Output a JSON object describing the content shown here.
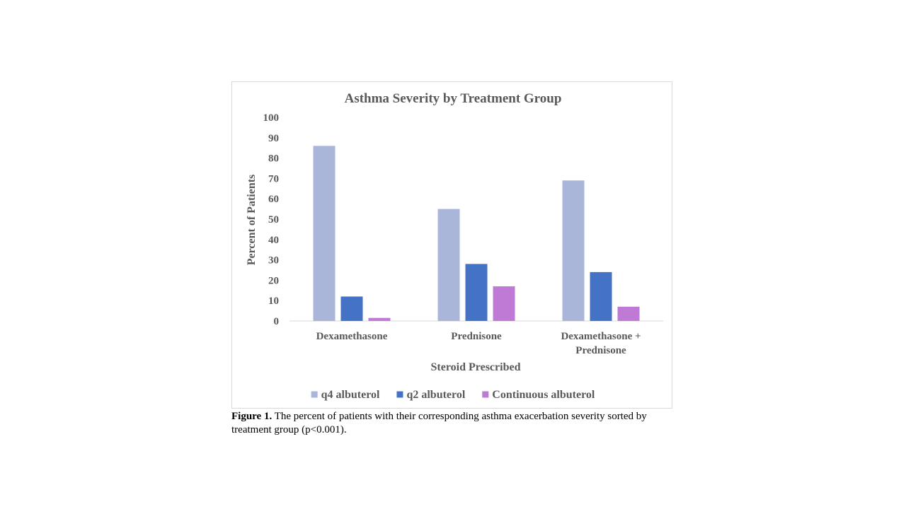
{
  "chart_data": {
    "type": "bar",
    "title": "Asthma Severity by Treatment Group",
    "xlabel": "Steroid Prescribed",
    "ylabel": "Percent of Patients",
    "ylim": [
      0,
      100
    ],
    "yticks": [
      "0",
      "10",
      "20",
      "30",
      "40",
      "50",
      "60",
      "70",
      "80",
      "90",
      "100"
    ],
    "categories": [
      [
        "Dexamethasone"
      ],
      [
        "Prednisone"
      ],
      [
        "Dexamethasone +",
        "Prednisone"
      ]
    ],
    "series": [
      {
        "name": "q4 albuterol",
        "color": "#a9b6da",
        "values": [
          86,
          55,
          69
        ]
      },
      {
        "name": "q2 albuterol",
        "color": "#4472c4",
        "values": [
          12,
          28,
          24
        ]
      },
      {
        "name": "Continuous albuterol",
        "color": "#bf7ad6",
        "values": [
          1.5,
          17,
          7
        ]
      }
    ],
    "grid": false,
    "legend_position": "bottom"
  },
  "caption": {
    "label": "Figure 1.",
    "text": " The percent of patients with their corresponding asthma exacerbation severity sorted by treatment group (p<0.001)."
  }
}
